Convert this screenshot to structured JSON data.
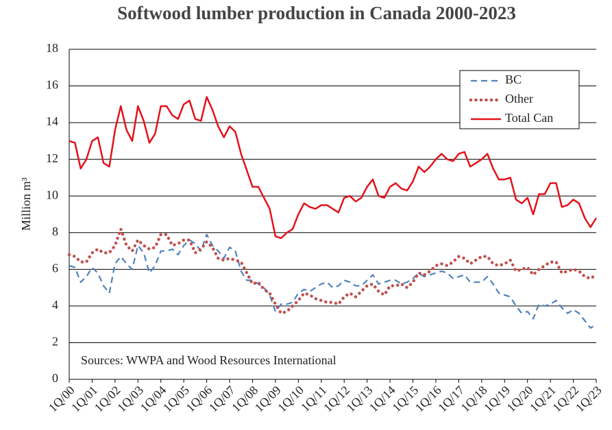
{
  "chart_data": {
    "type": "line",
    "title": "Softwood lumber production in Canada 2000-2023",
    "y_label": "Million m³",
    "annotation": "Sources: WWPA and Wood Resources International",
    "categories": [
      "1Q/00",
      null,
      null,
      null,
      "1Q/01",
      null,
      null,
      null,
      "1Q/02",
      null,
      null,
      null,
      "1Q/03",
      null,
      null,
      null,
      "1Q/04",
      null,
      null,
      null,
      "1Q/05",
      null,
      null,
      null,
      "1Q/06",
      null,
      null,
      null,
      "1Q/07",
      null,
      null,
      null,
      "1Q/08",
      null,
      null,
      null,
      "1Q/09",
      null,
      null,
      null,
      "1Q/10",
      null,
      null,
      null,
      "1Q/11",
      null,
      null,
      null,
      "1Q/12",
      null,
      null,
      null,
      "1Q/13",
      null,
      null,
      null,
      "1Q/14",
      null,
      null,
      null,
      "1Q/15",
      null,
      null,
      null,
      "1Q/16",
      null,
      null,
      null,
      "1Q/17",
      null,
      null,
      null,
      "1Q/18",
      null,
      null,
      null,
      "1Q/19",
      null,
      null,
      null,
      "1Q/20",
      null,
      null,
      null,
      "1Q/21",
      null,
      null,
      null,
      "1Q/22",
      null,
      null,
      null,
      "1Q/23"
    ],
    "series": [
      {
        "name": "BC",
        "color": "#4f81bd",
        "style": "dashed",
        "values": [
          6.2,
          6.1,
          5.3,
          5.6,
          6.1,
          5.8,
          5.1,
          4.7,
          6.3,
          6.7,
          6.3,
          6.0,
          7.3,
          6.9,
          5.8,
          6.2,
          7.0,
          7.0,
          7.1,
          6.8,
          7.3,
          7.6,
          7.4,
          7.0,
          7.9,
          7.3,
          7.0,
          6.6,
          7.2,
          7.0,
          5.9,
          5.4,
          5.4,
          5.2,
          5.0,
          4.6,
          3.7,
          4.1,
          4.1,
          4.2,
          4.7,
          4.9,
          4.8,
          5.0,
          5.2,
          5.3,
          5.0,
          5.1,
          5.4,
          5.3,
          5.1,
          5.1,
          5.4,
          5.7,
          5.2,
          5.3,
          5.4,
          5.4,
          5.2,
          5.3,
          5.5,
          5.8,
          5.6,
          5.7,
          5.8,
          5.9,
          5.8,
          5.5,
          5.6,
          5.7,
          5.3,
          5.3,
          5.3,
          5.6,
          5.2,
          4.7,
          4.6,
          4.5,
          4.0,
          3.6,
          3.7,
          3.3,
          4.1,
          4.0,
          4.1,
          4.3,
          3.9,
          3.6,
          3.8,
          3.6,
          3.2,
          2.8,
          3.0
        ]
      },
      {
        "name": "Other",
        "color": "#c0504d",
        "style": "dotted",
        "values": [
          6.8,
          6.7,
          6.4,
          6.4,
          6.9,
          7.1,
          6.9,
          6.9,
          7.3,
          8.2,
          7.3,
          7.0,
          7.6,
          7.3,
          7.1,
          7.2,
          7.9,
          7.9,
          7.3,
          7.4,
          7.6,
          7.6,
          6.9,
          7.1,
          7.5,
          7.2,
          6.6,
          6.5,
          6.6,
          6.5,
          6.4,
          5.8,
          5.2,
          5.3,
          4.9,
          4.7,
          4.1,
          3.6,
          3.7,
          4.0,
          4.3,
          4.7,
          4.6,
          4.4,
          4.3,
          4.2,
          4.2,
          4.1,
          4.5,
          4.7,
          4.5,
          4.8,
          5.1,
          5.2,
          4.8,
          4.6,
          5.1,
          5.1,
          5.2,
          5.0,
          5.3,
          5.8,
          5.7,
          5.9,
          6.2,
          6.3,
          6.2,
          6.4,
          6.7,
          6.6,
          6.3,
          6.5,
          6.7,
          6.7,
          6.3,
          6.2,
          6.3,
          6.5,
          5.9,
          6.0,
          6.1,
          5.7,
          6.0,
          6.2,
          6.4,
          6.4,
          5.8,
          5.9,
          6.0,
          5.9,
          5.6,
          5.5,
          5.7
        ]
      },
      {
        "name": "Total Can",
        "color": "#e3121b",
        "style": "solid",
        "values": [
          13.0,
          12.9,
          11.5,
          12.0,
          13.0,
          13.2,
          11.8,
          11.6,
          13.6,
          14.9,
          13.6,
          13.0,
          14.9,
          14.1,
          12.9,
          13.4,
          14.9,
          14.9,
          14.4,
          14.2,
          15.0,
          15.2,
          14.2,
          14.1,
          15.4,
          14.7,
          13.8,
          13.2,
          13.8,
          13.5,
          12.3,
          11.4,
          10.5,
          10.5,
          9.9,
          9.3,
          7.8,
          7.7,
          8.0,
          8.2,
          9.0,
          9.6,
          9.4,
          9.3,
          9.5,
          9.5,
          9.3,
          9.1,
          9.9,
          10.0,
          9.7,
          9.9,
          10.5,
          10.9,
          10.0,
          9.9,
          10.5,
          10.7,
          10.4,
          10.3,
          10.8,
          11.6,
          11.3,
          11.6,
          12.0,
          12.3,
          12.0,
          11.9,
          12.3,
          12.4,
          11.6,
          11.8,
          12.0,
          12.3,
          11.5,
          10.9,
          10.9,
          11.0,
          9.8,
          9.6,
          9.9,
          9.0,
          10.1,
          10.1,
          10.7,
          10.7,
          9.4,
          9.5,
          9.8,
          9.6,
          8.8,
          8.3,
          8.8
        ]
      }
    ],
    "ylim": [
      0,
      18
    ],
    "yticks": [
      0,
      2,
      4,
      6,
      8,
      10,
      12,
      14,
      16,
      18
    ],
    "grid": true,
    "legend": "top-right"
  }
}
